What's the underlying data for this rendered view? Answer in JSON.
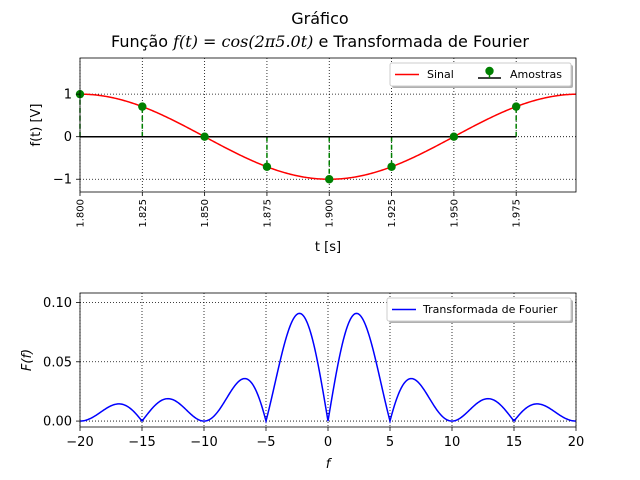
{
  "figure": {
    "suptitle": "Gráfico",
    "title": "Função f(t) = cos(2π5.0t) e Transformada de Fourier",
    "title_parts": {
      "pre": "Função ",
      "expr": "f(t) = cos(2π5.0t)",
      "post": " e Transformada de Fourier"
    }
  },
  "chart_data": [
    {
      "type": "line",
      "xlabel": "t [s]",
      "ylabel": "f(t) [V]",
      "xlim": [
        1.8,
        1.999
      ],
      "ylim": [
        -1.3,
        1.85
      ],
      "grid": true,
      "x_ticks": [
        "1.800",
        "1.825",
        "1.850",
        "1.875",
        "1.900",
        "1.925",
        "1.950",
        "1.975"
      ],
      "y_ticks": [
        "−1",
        "0",
        "1"
      ],
      "legend_position": "top-right",
      "series": [
        {
          "name": "Sinal",
          "color": "#ff0000",
          "function": "cos(2*pi*5.0*t)"
        },
        {
          "name": "Amostras",
          "color": "#008000",
          "stem": true,
          "baseline_color": "#000000",
          "x": [
            1.8,
            1.825,
            1.85,
            1.875,
            1.9,
            1.925,
            1.95,
            1.975
          ],
          "y": [
            1.0,
            0.707,
            0.0,
            -0.707,
            -1.0,
            -0.707,
            0.0,
            0.707
          ]
        }
      ]
    },
    {
      "type": "line",
      "xlabel": "f",
      "ylabel": "F(f)",
      "xlim": [
        -20,
        20
      ],
      "ylim": [
        -0.005,
        0.108
      ],
      "grid": true,
      "x_ticks": [
        "−20",
        "−15",
        "−10",
        "−5",
        "0",
        "5",
        "10",
        "15",
        "20"
      ],
      "y_ticks": [
        "0.00",
        "0.05",
        "0.10"
      ],
      "legend_position": "top-right",
      "series": [
        {
          "name": "Transformada de Fourier",
          "color": "#0000ff",
          "function": "0.2*|cos(pi*f/10)*sin(pi*f/10)/(pi*f/10)|"
        }
      ]
    }
  ]
}
